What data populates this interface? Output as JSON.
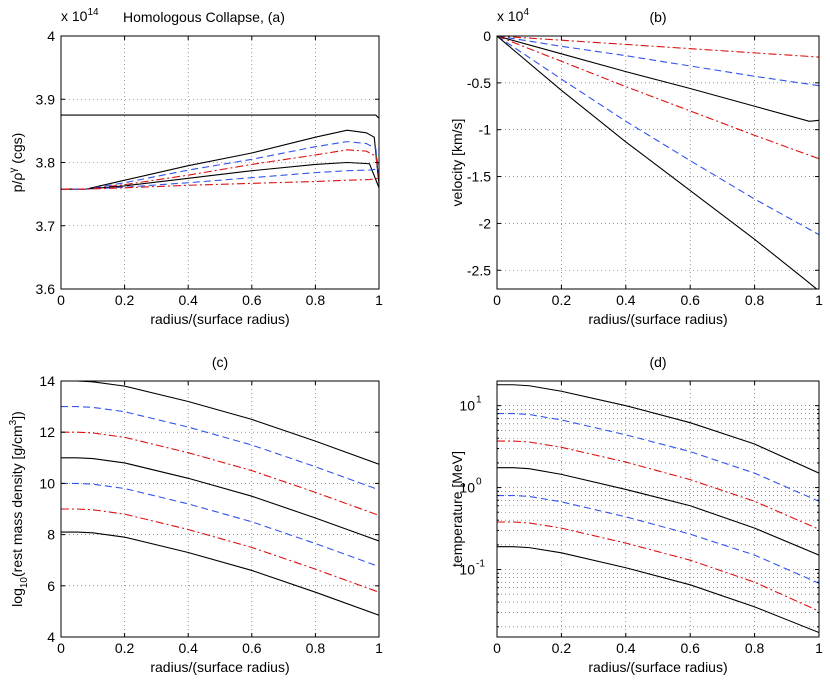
{
  "figure": {
    "suptitle": "Homologous Collapse, (a)"
  },
  "colors": {
    "black": "#000000",
    "blue": "#3355ee",
    "red": "#dd1111",
    "grid": "#555555"
  },
  "chart_data": [
    {
      "id": "a",
      "type": "line",
      "title": "",
      "xlabel": "radius/(surface radius)",
      "ylabel": "p/ρ^γ (cgs)",
      "ylabel_parts": [
        "p/ρ",
        "γ",
        " (cgs)"
      ],
      "exponent_base": "x 10",
      "exponent_power": "14",
      "xlim": [
        0,
        1
      ],
      "ylim": [
        3.6,
        4.0
      ],
      "xticks": [
        0,
        0.2,
        0.4,
        0.6,
        0.8,
        1
      ],
      "xtick_labels": [
        "0",
        "0.2",
        "0.4",
        "0.6",
        "0.8",
        "1"
      ],
      "yticks": [
        3.6,
        3.7,
        3.8,
        3.9,
        4.0
      ],
      "ytick_labels": [
        "3.6",
        "3.7",
        "3.8",
        "3.9",
        "4"
      ],
      "yscale": "linear",
      "grid": true,
      "series": [
        {
          "name": "black-1",
          "style": "solid",
          "color": "black",
          "x": [
            0,
            0.1,
            0.2,
            0.4,
            0.6,
            0.8,
            0.95,
            0.99,
            1.0
          ],
          "y": [
            3.875,
            3.875,
            3.875,
            3.875,
            3.875,
            3.875,
            3.875,
            3.875,
            3.87
          ]
        },
        {
          "name": "black-2",
          "style": "solid",
          "color": "black",
          "x": [
            0,
            0.08,
            0.2,
            0.4,
            0.6,
            0.8,
            0.9,
            0.96,
            0.985,
            1.0
          ],
          "y": [
            3.758,
            3.758,
            3.772,
            3.795,
            3.815,
            3.84,
            3.851,
            3.847,
            3.84,
            3.765
          ]
        },
        {
          "name": "blue-1",
          "style": "dashed",
          "color": "blue",
          "x": [
            0,
            0.08,
            0.2,
            0.4,
            0.6,
            0.8,
            0.9,
            0.96,
            0.99,
            1.0
          ],
          "y": [
            3.758,
            3.758,
            3.768,
            3.788,
            3.805,
            3.825,
            3.833,
            3.83,
            3.822,
            3.78
          ]
        },
        {
          "name": "red-1",
          "style": "dashdot",
          "color": "red",
          "x": [
            0,
            0.08,
            0.2,
            0.4,
            0.6,
            0.8,
            0.9,
            0.96,
            0.99,
            1.0
          ],
          "y": [
            3.758,
            3.758,
            3.765,
            3.78,
            3.797,
            3.812,
            3.82,
            3.818,
            3.81,
            3.775
          ]
        },
        {
          "name": "black-3",
          "style": "solid",
          "color": "black",
          "x": [
            0,
            0.08,
            0.2,
            0.4,
            0.6,
            0.8,
            0.9,
            0.97,
            1.0
          ],
          "y": [
            3.758,
            3.758,
            3.763,
            3.775,
            3.787,
            3.797,
            3.8,
            3.798,
            3.76
          ]
        },
        {
          "name": "blue-2",
          "style": "dashed",
          "color": "blue",
          "x": [
            0,
            0.08,
            0.2,
            0.4,
            0.6,
            0.8,
            0.9,
            0.97,
            1.0
          ],
          "y": [
            3.758,
            3.758,
            3.761,
            3.768,
            3.776,
            3.784,
            3.787,
            3.788,
            3.79
          ]
        },
        {
          "name": "red-2",
          "style": "dashdot",
          "color": "red",
          "x": [
            0,
            0.08,
            0.2,
            0.4,
            0.6,
            0.8,
            0.9,
            0.97,
            1.0
          ],
          "y": [
            3.758,
            3.758,
            3.76,
            3.764,
            3.767,
            3.77,
            3.772,
            3.773,
            3.775
          ]
        }
      ]
    },
    {
      "id": "b",
      "type": "line",
      "title": "(b)",
      "xlabel": "radius/(surface radius)",
      "ylabel": "velocity [km/s]",
      "exponent_base": "x 10",
      "exponent_power": "4",
      "xlim": [
        0,
        1
      ],
      "ylim": [
        -2.7,
        0
      ],
      "xticks": [
        0,
        0.2,
        0.4,
        0.6,
        0.8,
        1
      ],
      "xtick_labels": [
        "0",
        "0.2",
        "0.4",
        "0.6",
        "0.8",
        "1"
      ],
      "yticks": [
        0,
        -0.5,
        -1,
        -1.5,
        -2,
        -2.5
      ],
      "ytick_labels": [
        "0",
        "-0.5",
        "-1",
        "-1.5",
        "-2",
        "-2.5"
      ],
      "yscale": "linear",
      "grid": true,
      "series": [
        {
          "name": "red-1",
          "style": "dashdot",
          "color": "red",
          "x": [
            0,
            0.2,
            0.4,
            0.6,
            0.8,
            1.0
          ],
          "y": [
            0,
            -0.045,
            -0.09,
            -0.135,
            -0.18,
            -0.225
          ]
        },
        {
          "name": "blue-1",
          "style": "dashed",
          "color": "blue",
          "x": [
            0,
            0.2,
            0.4,
            0.6,
            0.8,
            1.0
          ],
          "y": [
            0,
            -0.11,
            -0.21,
            -0.32,
            -0.43,
            -0.53
          ]
        },
        {
          "name": "black-1",
          "style": "solid",
          "color": "black",
          "x": [
            0,
            0.2,
            0.4,
            0.6,
            0.8,
            0.97,
            1.0
          ],
          "y": [
            0,
            -0.19,
            -0.38,
            -0.56,
            -0.75,
            -0.91,
            -0.9
          ]
        },
        {
          "name": "red-2",
          "style": "dashdot",
          "color": "red",
          "x": [
            0,
            0.2,
            0.4,
            0.6,
            0.8,
            1.0
          ],
          "y": [
            0,
            -0.27,
            -0.54,
            -0.8,
            -1.06,
            -1.31
          ]
        },
        {
          "name": "blue-2",
          "style": "dashed",
          "color": "blue",
          "x": [
            0,
            0.2,
            0.4,
            0.6,
            0.8,
            1.0
          ],
          "y": [
            0,
            -0.46,
            -0.91,
            -1.33,
            -1.74,
            -2.12
          ]
        },
        {
          "name": "black-2",
          "style": "solid",
          "color": "black",
          "x": [
            0,
            0.2,
            0.4,
            0.6,
            0.8,
            0.95,
            1.0
          ],
          "y": [
            0,
            -0.58,
            -1.13,
            -1.65,
            -2.17,
            -2.58,
            -2.72
          ]
        }
      ]
    },
    {
      "id": "c",
      "type": "line",
      "title": "(c)",
      "xlabel": "radius/(surface radius)",
      "ylabel": "log10(rest mass density [g/cm3])",
      "ylabel_parts": [
        "log",
        "10",
        "(rest mass density [g/cm",
        "3",
        "])"
      ],
      "xlim": [
        0,
        1
      ],
      "ylim": [
        4,
        14
      ],
      "xticks": [
        0,
        0.2,
        0.4,
        0.6,
        0.8,
        1
      ],
      "xtick_labels": [
        "0",
        "0.2",
        "0.4",
        "0.6",
        "0.8",
        "1"
      ],
      "yticks": [
        4,
        6,
        8,
        10,
        12,
        14
      ],
      "ytick_labels": [
        "4",
        "6",
        "8",
        "10",
        "12",
        "14"
      ],
      "yscale": "linear",
      "grid": true,
      "series": [
        {
          "name": "black-1",
          "style": "solid",
          "color": "black",
          "x": [
            0,
            0.05,
            0.1,
            0.2,
            0.4,
            0.6,
            0.8,
            1.0
          ],
          "y": [
            14,
            14,
            13.97,
            13.8,
            13.2,
            12.5,
            11.65,
            10.75
          ]
        },
        {
          "name": "blue-1",
          "style": "dashed",
          "color": "blue",
          "x": [
            0,
            0.05,
            0.1,
            0.2,
            0.4,
            0.6,
            0.8,
            1.0
          ],
          "y": [
            13,
            13,
            12.97,
            12.8,
            12.2,
            11.5,
            10.65,
            9.75
          ]
        },
        {
          "name": "red-1",
          "style": "dashdot",
          "color": "red",
          "x": [
            0,
            0.05,
            0.1,
            0.2,
            0.4,
            0.6,
            0.8,
            1.0
          ],
          "y": [
            12,
            12,
            11.97,
            11.8,
            11.2,
            10.5,
            9.65,
            8.75
          ]
        },
        {
          "name": "black-2",
          "style": "solid",
          "color": "black",
          "x": [
            0,
            0.05,
            0.1,
            0.2,
            0.4,
            0.6,
            0.8,
            1.0
          ],
          "y": [
            11,
            11,
            10.97,
            10.8,
            10.2,
            9.5,
            8.65,
            7.75
          ]
        },
        {
          "name": "blue-2",
          "style": "dashed",
          "color": "blue",
          "x": [
            0,
            0.05,
            0.1,
            0.2,
            0.4,
            0.6,
            0.8,
            1.0
          ],
          "y": [
            10,
            10,
            9.97,
            9.8,
            9.2,
            8.5,
            7.65,
            6.75
          ]
        },
        {
          "name": "red-2",
          "style": "dashdot",
          "color": "red",
          "x": [
            0,
            0.05,
            0.1,
            0.2,
            0.4,
            0.6,
            0.8,
            1.0
          ],
          "y": [
            9,
            9,
            8.97,
            8.8,
            8.2,
            7.5,
            6.65,
            5.75
          ]
        },
        {
          "name": "black-3",
          "style": "solid",
          "color": "black",
          "x": [
            0,
            0.05,
            0.1,
            0.2,
            0.4,
            0.6,
            0.8,
            1.0
          ],
          "y": [
            8.1,
            8.1,
            8.07,
            7.9,
            7.3,
            6.6,
            5.75,
            4.85
          ]
        }
      ]
    },
    {
      "id": "d",
      "type": "line",
      "title": "(d)",
      "xlabel": "radius/(surface radius)",
      "ylabel": "temperature [MeV]",
      "xlim": [
        0,
        1
      ],
      "ylim": [
        0.015,
        20
      ],
      "xticks": [
        0,
        0.2,
        0.4,
        0.6,
        0.8,
        1
      ],
      "xtick_labels": [
        "0",
        "0.2",
        "0.4",
        "0.6",
        "0.8",
        "1"
      ],
      "yticks": [
        0.1,
        1,
        10
      ],
      "ytick_labels": [
        [
          "10",
          "-1"
        ],
        [
          "10",
          "0"
        ],
        [
          "10",
          "1"
        ]
      ],
      "yscale": "log",
      "grid": true,
      "series": [
        {
          "name": "black-1",
          "style": "solid",
          "color": "black",
          "x": [
            0,
            0.05,
            0.1,
            0.2,
            0.4,
            0.6,
            0.8,
            1.0
          ],
          "y": [
            18,
            18,
            17.5,
            15,
            10,
            6.2,
            3.4,
            1.5
          ]
        },
        {
          "name": "blue-1",
          "style": "dashed",
          "color": "blue",
          "x": [
            0,
            0.05,
            0.1,
            0.2,
            0.4,
            0.6,
            0.8,
            1.0
          ],
          "y": [
            8,
            8,
            7.8,
            6.7,
            4.4,
            2.75,
            1.5,
            0.68
          ]
        },
        {
          "name": "red-1",
          "style": "dashdot",
          "color": "red",
          "x": [
            0,
            0.05,
            0.1,
            0.2,
            0.4,
            0.6,
            0.8,
            1.0
          ],
          "y": [
            3.7,
            3.7,
            3.6,
            3.1,
            2.05,
            1.25,
            0.68,
            0.31
          ]
        },
        {
          "name": "black-2",
          "style": "solid",
          "color": "black",
          "x": [
            0,
            0.05,
            0.1,
            0.2,
            0.4,
            0.6,
            0.8,
            1.0
          ],
          "y": [
            1.75,
            1.75,
            1.7,
            1.45,
            0.95,
            0.6,
            0.32,
            0.15
          ]
        },
        {
          "name": "blue-2",
          "style": "dashed",
          "color": "blue",
          "x": [
            0,
            0.05,
            0.1,
            0.2,
            0.4,
            0.6,
            0.8,
            1.0
          ],
          "y": [
            0.8,
            0.8,
            0.78,
            0.67,
            0.44,
            0.27,
            0.15,
            0.068
          ]
        },
        {
          "name": "red-2",
          "style": "dashdot",
          "color": "red",
          "x": [
            0,
            0.05,
            0.1,
            0.2,
            0.4,
            0.6,
            0.8,
            1.0
          ],
          "y": [
            0.38,
            0.38,
            0.37,
            0.32,
            0.21,
            0.13,
            0.07,
            0.031
          ]
        },
        {
          "name": "black-3",
          "style": "solid",
          "color": "black",
          "x": [
            0,
            0.05,
            0.1,
            0.2,
            0.4,
            0.6,
            0.8,
            1.0
          ],
          "y": [
            0.19,
            0.19,
            0.185,
            0.16,
            0.105,
            0.065,
            0.035,
            0.017
          ]
        }
      ]
    }
  ]
}
